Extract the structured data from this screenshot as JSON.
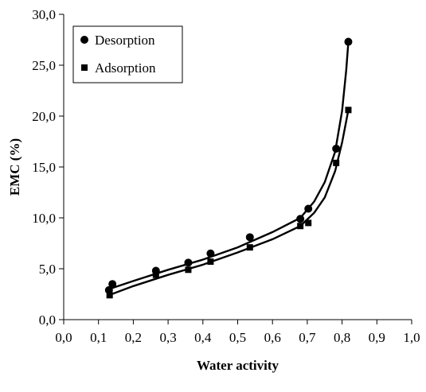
{
  "chart_data": {
    "type": "scatter",
    "xlabel": "Water activity",
    "ylabel": "EMC  (%)",
    "xlim": [
      0.0,
      1.0
    ],
    "ylim": [
      0.0,
      30.0
    ],
    "x_ticks": [
      "0,0",
      "0,1",
      "0,2",
      "0,3",
      "0,4",
      "0,5",
      "0,6",
      "0,7",
      "0,8",
      "0,9",
      "1,0"
    ],
    "y_ticks": [
      "0,0",
      "5,0",
      "10,0",
      "15,0",
      "20,0",
      "25,0",
      "30,0"
    ],
    "grid": false,
    "legend_position": "top-left",
    "series": [
      {
        "name": "Desorption",
        "marker": "circle",
        "color": "#000000",
        "points": [
          {
            "x": 0.13,
            "y": 2.9
          },
          {
            "x": 0.14,
            "y": 3.5
          },
          {
            "x": 0.265,
            "y": 4.8
          },
          {
            "x": 0.358,
            "y": 5.6
          },
          {
            "x": 0.422,
            "y": 6.5
          },
          {
            "x": 0.535,
            "y": 8.1
          },
          {
            "x": 0.68,
            "y": 9.9
          },
          {
            "x": 0.703,
            "y": 10.9
          },
          {
            "x": 0.783,
            "y": 16.8
          },
          {
            "x": 0.818,
            "y": 27.3
          }
        ],
        "fit": [
          [
            0.13,
            3.0
          ],
          [
            0.2,
            3.8
          ],
          [
            0.3,
            4.9
          ],
          [
            0.4,
            5.9
          ],
          [
            0.5,
            7.1
          ],
          [
            0.6,
            8.6
          ],
          [
            0.68,
            10.0
          ],
          [
            0.72,
            11.6
          ],
          [
            0.75,
            13.5
          ],
          [
            0.78,
            16.5
          ],
          [
            0.8,
            20.5
          ],
          [
            0.812,
            24.5
          ],
          [
            0.818,
            27.3
          ]
        ]
      },
      {
        "name": "Adsorption",
        "marker": "square",
        "color": "#000000",
        "points": [
          {
            "x": 0.132,
            "y": 2.4
          },
          {
            "x": 0.265,
            "y": 4.4
          },
          {
            "x": 0.358,
            "y": 4.9
          },
          {
            "x": 0.422,
            "y": 5.7
          },
          {
            "x": 0.535,
            "y": 7.1
          },
          {
            "x": 0.68,
            "y": 9.2
          },
          {
            "x": 0.703,
            "y": 9.5
          },
          {
            "x": 0.783,
            "y": 15.4
          },
          {
            "x": 0.818,
            "y": 20.6
          }
        ],
        "fit": [
          [
            0.13,
            2.4
          ],
          [
            0.2,
            3.3
          ],
          [
            0.3,
            4.4
          ],
          [
            0.4,
            5.4
          ],
          [
            0.5,
            6.6
          ],
          [
            0.6,
            7.9
          ],
          [
            0.68,
            9.2
          ],
          [
            0.72,
            10.5
          ],
          [
            0.75,
            12.0
          ],
          [
            0.78,
            14.6
          ],
          [
            0.8,
            17.4
          ],
          [
            0.818,
            20.6
          ]
        ]
      }
    ]
  }
}
